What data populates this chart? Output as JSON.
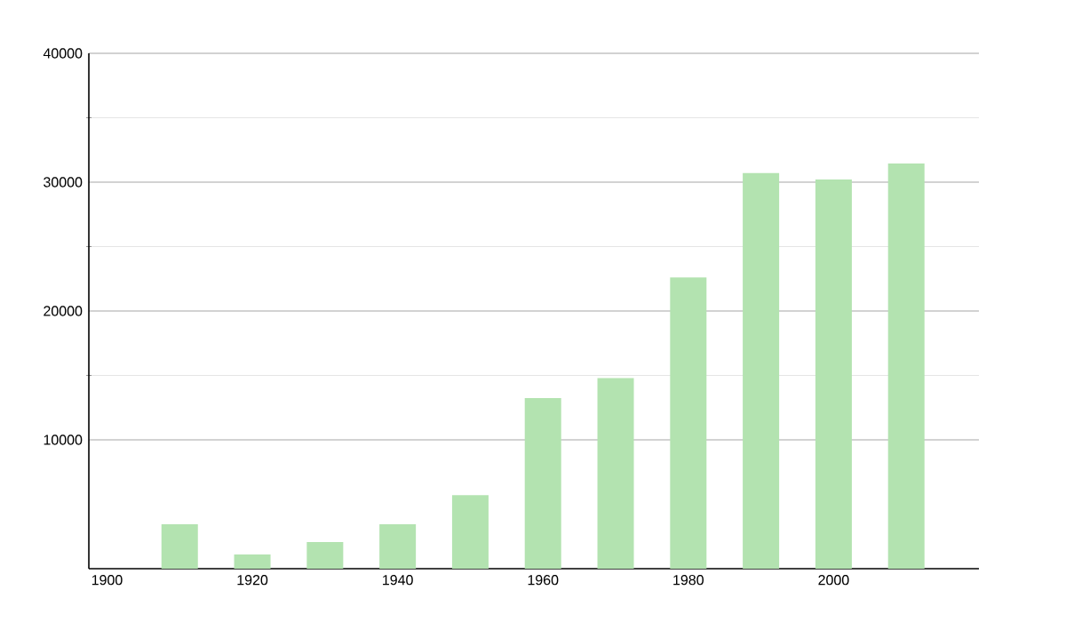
{
  "chart_data": {
    "type": "bar",
    "x": [
      1910,
      1920,
      1930,
      1940,
      1950,
      1960,
      1970,
      1980,
      1990,
      2000,
      2010
    ],
    "values": [
      3450,
      1100,
      2070,
      3450,
      5700,
      13240,
      14800,
      22600,
      30700,
      30200,
      31450
    ],
    "color": "#b3e3b0",
    "xlim": [
      1897.5,
      2020
    ],
    "xticks": [
      1900,
      1920,
      1940,
      1960,
      1980,
      2000
    ],
    "ylim": [
      0,
      40000
    ],
    "yticks": [
      10000,
      20000,
      30000,
      40000
    ],
    "grid": "y"
  }
}
